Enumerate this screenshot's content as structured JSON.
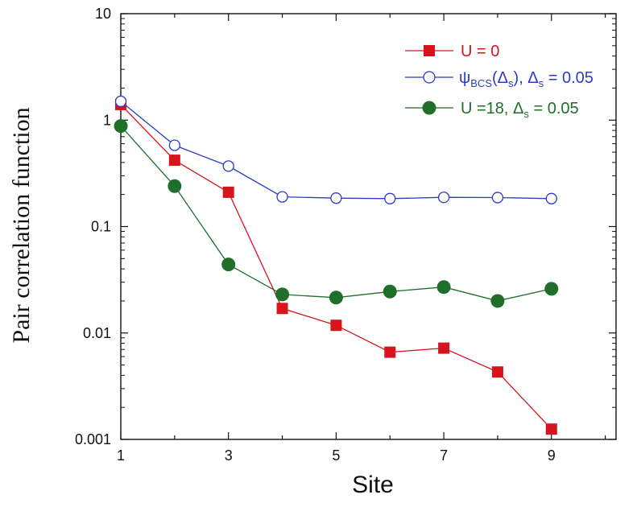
{
  "chart_data": {
    "type": "line",
    "xlabel": "Site",
    "ylabel": "Pair correlation function",
    "xlim": [
      1,
      10.2
    ],
    "ylim": [
      0.001,
      10
    ],
    "yscale": "log",
    "x_ticks": [
      1,
      3,
      5,
      7,
      9
    ],
    "x_tick_labels": [
      "1",
      "3",
      "5",
      "7",
      "9"
    ],
    "y_ticks": [
      10,
      1,
      0.1,
      0.01,
      0.001
    ],
    "y_tick_labels": [
      "10",
      "1",
      "0.1",
      "0.01",
      "0.001"
    ],
    "grid": false,
    "legend_position": "top-right",
    "series": [
      {
        "name": "U = 0",
        "color": "#d7141d",
        "marker": "filled-square",
        "x": [
          1,
          2,
          3,
          4,
          5,
          6,
          7,
          8,
          9
        ],
        "values": [
          1.4,
          0.42,
          0.21,
          0.017,
          0.0118,
          0.0066,
          0.0072,
          0.0043,
          0.00125
        ]
      },
      {
        "name": "ψBCS(Δs), Δs = 0.05",
        "legend_parts": {
          "psi": "ψ",
          "psi_sub": "BCS",
          "open": "(Δ",
          "delta_sub": "s",
          "mid": "), Δ",
          "sub2": "s",
          "tail": " = 0.05"
        },
        "color": "#2a3cc8",
        "marker": "open-circle",
        "x": [
          1,
          2,
          3,
          4,
          5,
          6,
          7,
          8,
          9
        ],
        "values": [
          1.5,
          0.58,
          0.37,
          0.19,
          0.185,
          0.183,
          0.188,
          0.187,
          0.183
        ]
      },
      {
        "name": "U =18, Δs = 0.05",
        "legend_parts": {
          "main": "U =18, Δ",
          "sub": "s",
          "tail": " = 0.05"
        },
        "color": "#1f6e2a",
        "marker": "filled-circle",
        "x": [
          1,
          2,
          3,
          4,
          5,
          6,
          7,
          8,
          9
        ],
        "values": [
          0.88,
          0.24,
          0.044,
          0.023,
          0.0215,
          0.0245,
          0.027,
          0.02,
          0.026
        ]
      }
    ]
  }
}
